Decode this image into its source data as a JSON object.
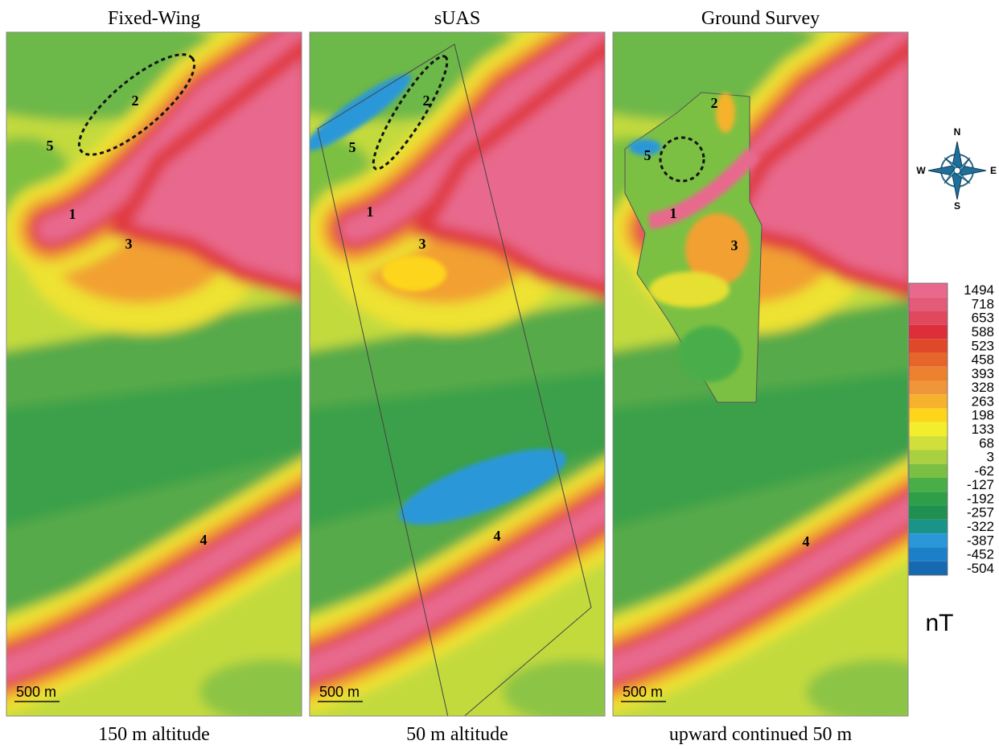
{
  "panels": [
    {
      "title": "Fixed-Wing",
      "caption": "150 m altitude",
      "scale_bar": "500 m",
      "labels": [
        "1",
        "2",
        "3",
        "4",
        "5"
      ]
    },
    {
      "title": "sUAS",
      "caption": "50 m altitude",
      "scale_bar": "500 m",
      "labels": [
        "1",
        "2",
        "3",
        "4",
        "5"
      ]
    },
    {
      "title": "Ground Survey",
      "caption": "upward continued 50 m",
      "scale_bar": "500 m",
      "labels": [
        "1",
        "2",
        "3",
        "4",
        "5"
      ]
    }
  ],
  "legend": {
    "unit": "nT",
    "levels": [
      {
        "value": 1494,
        "color": "#e8698d"
      },
      {
        "value": 718,
        "color": "#e45b7a"
      },
      {
        "value": 653,
        "color": "#e0485e"
      },
      {
        "value": 588,
        "color": "#dd2f3a"
      },
      {
        "value": 523,
        "color": "#e0482a"
      },
      {
        "value": 458,
        "color": "#e6652a"
      },
      {
        "value": 393,
        "color": "#ec8230"
      },
      {
        "value": 328,
        "color": "#f0963a"
      },
      {
        "value": 263,
        "color": "#f6b22c"
      },
      {
        "value": 198,
        "color": "#fdd51a"
      },
      {
        "value": 133,
        "color": "#f3ee2c"
      },
      {
        "value": 68,
        "color": "#cfe03a"
      },
      {
        "value": 3,
        "color": "#a8d040"
      },
      {
        "value": -62,
        "color": "#7cc043"
      },
      {
        "value": -127,
        "color": "#4aae48"
      },
      {
        "value": -192,
        "color": "#2e9e48"
      },
      {
        "value": -257,
        "color": "#1f9050"
      },
      {
        "value": -322,
        "color": "#1a9488"
      },
      {
        "value": -387,
        "color": "#2a98d8"
      },
      {
        "value": -452,
        "color": "#1c80c8"
      },
      {
        "value": -504,
        "color": "#1668b0"
      }
    ]
  },
  "compass": {
    "north": "N",
    "south": "S",
    "east": "E",
    "west": "W"
  }
}
